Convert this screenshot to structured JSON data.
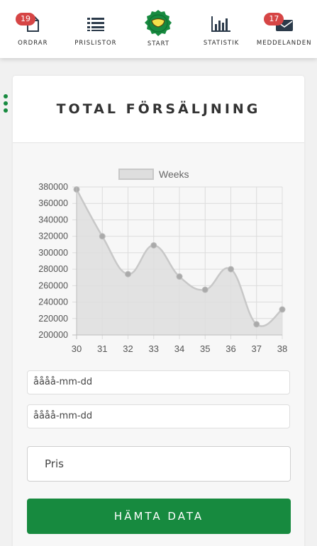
{
  "nav": {
    "items": [
      {
        "label": "ORDRAR",
        "icon": "document-icon",
        "badge": "19"
      },
      {
        "label": "PRISLISTOR",
        "icon": "list-icon"
      },
      {
        "label": "START",
        "icon": "start-logo-icon"
      },
      {
        "label": "STATISTIK",
        "icon": "bar-chart-icon"
      },
      {
        "label": "MEDDELANDEN",
        "icon": "envelope-icon",
        "badge": "17"
      }
    ]
  },
  "colors": {
    "accent": "#178a3f",
    "badge": "#d64545",
    "chart_fill": "#dedede",
    "chart_line": "#c8c8c8",
    "chart_point": "#aaaaaa"
  },
  "card": {
    "title": "TOTAL FÖRSÄLJNING"
  },
  "form": {
    "date_from_value": "åååå-mm-dd",
    "date_to_value": "åååå-mm-dd",
    "price_placeholder": "Pris",
    "fetch_button": "HÄMTA DATA"
  },
  "chart_data": {
    "type": "area",
    "title": "",
    "legend": [
      "Weeks"
    ],
    "legend_position": "top-center",
    "xlabel": "",
    "ylabel": "",
    "categories": [
      "30",
      "31",
      "32",
      "33",
      "34",
      "35",
      "36",
      "37",
      "38"
    ],
    "series": [
      {
        "name": "Weeks",
        "values": [
          377000,
          320000,
          274000,
          309000,
          271000,
          255000,
          280000,
          213000,
          231000
        ]
      }
    ],
    "y_ticks": [
      "380000",
      "360000",
      "340000",
      "320000",
      "300000",
      "280000",
      "260000",
      "240000",
      "220000",
      "200000"
    ],
    "ylim": [
      200000,
      380000
    ],
    "grid": true
  }
}
